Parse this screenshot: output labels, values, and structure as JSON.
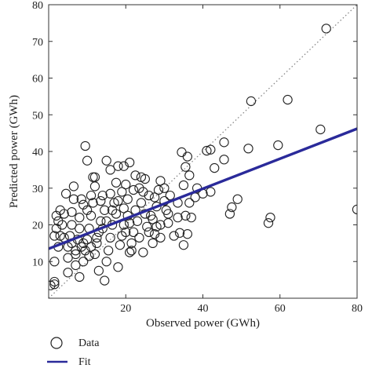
{
  "chart_data": {
    "type": "scatter",
    "xlabel": "Observed power (GWh)",
    "ylabel": "Predicted power (GWh)",
    "xlim": [
      0,
      80
    ],
    "ylim": [
      0,
      80
    ],
    "xticks": [
      20,
      40,
      60,
      80
    ],
    "yticks": [
      10,
      20,
      30,
      40,
      50,
      60,
      70,
      80
    ],
    "grid": false,
    "legend_position": "bottom-left",
    "identity_line": {
      "style": "dotted",
      "color": "#888888",
      "from": [
        0,
        0
      ],
      "to": [
        80,
        80
      ]
    },
    "fit_line": {
      "color": "#2a2a9a",
      "x": [
        0,
        80
      ],
      "y": [
        13.5,
        46.2
      ]
    },
    "legend": [
      {
        "label": "Data",
        "marker": "circle"
      },
      {
        "label": "Fit",
        "marker": "line"
      }
    ],
    "series": [
      {
        "name": "Data",
        "marker": "open-circle",
        "color": "#222222",
        "points": [
          [
            72,
            73.5
          ],
          [
            52.5,
            53.7
          ],
          [
            62,
            54.1
          ],
          [
            70.5,
            46
          ],
          [
            59.5,
            41.7
          ],
          [
            51.8,
            40.8
          ],
          [
            80,
            24.2
          ],
          [
            57.5,
            22
          ],
          [
            57,
            20.5
          ],
          [
            49,
            27
          ],
          [
            47.5,
            24.8
          ],
          [
            47,
            23
          ],
          [
            45.5,
            37.8
          ],
          [
            45.5,
            42.5
          ],
          [
            42,
            40.5
          ],
          [
            41,
            40.2
          ],
          [
            43,
            35.5
          ],
          [
            34.5,
            39.8
          ],
          [
            36,
            38.6
          ],
          [
            35.5,
            35.8
          ],
          [
            36.5,
            33.5
          ],
          [
            35,
            30.8
          ],
          [
            38,
            27.5
          ],
          [
            42,
            29
          ],
          [
            36,
            17.5
          ],
          [
            34,
            17.8
          ],
          [
            33.5,
            22
          ],
          [
            35,
            14.5
          ],
          [
            35.5,
            22.5
          ],
          [
            36.5,
            26
          ],
          [
            31.5,
            28
          ],
          [
            30,
            26.5
          ],
          [
            31,
            23
          ],
          [
            29,
            20
          ],
          [
            29,
            16.5
          ],
          [
            28,
            19.5
          ],
          [
            29,
            32
          ],
          [
            30,
            30
          ],
          [
            27.5,
            27.5
          ],
          [
            28,
            25
          ],
          [
            27,
            15
          ],
          [
            26.5,
            22.5
          ],
          [
            25.5,
            19.5
          ],
          [
            24,
            33
          ],
          [
            23.5,
            30
          ],
          [
            25,
            32.5
          ],
          [
            24,
            26
          ],
          [
            22.5,
            24
          ],
          [
            23,
            21
          ],
          [
            22,
            18
          ],
          [
            21.5,
            15
          ],
          [
            21,
            12.5
          ],
          [
            20.5,
            22.5
          ],
          [
            19.5,
            20
          ],
          [
            19,
            17
          ],
          [
            18.5,
            14.5
          ],
          [
            19,
            29
          ],
          [
            20,
            31
          ],
          [
            20.5,
            27
          ],
          [
            18,
            36
          ],
          [
            19.5,
            36
          ],
          [
            16,
            35
          ],
          [
            15,
            37.5
          ],
          [
            17,
            26
          ],
          [
            17.5,
            23
          ],
          [
            16.5,
            20
          ],
          [
            16,
            16.5
          ],
          [
            15.5,
            13
          ],
          [
            15,
            10
          ],
          [
            14,
            28
          ],
          [
            14.5,
            24
          ],
          [
            13.5,
            21
          ],
          [
            13,
            18
          ],
          [
            12.5,
            15
          ],
          [
            12,
            12
          ],
          [
            12,
            30.5
          ],
          [
            11.5,
            26
          ],
          [
            11,
            22.5
          ],
          [
            10.5,
            19
          ],
          [
            10,
            16
          ],
          [
            9.5,
            13
          ],
          [
            9,
            10
          ],
          [
            9,
            25.5
          ],
          [
            8,
            22
          ],
          [
            8,
            19
          ],
          [
            7.5,
            16
          ],
          [
            7,
            13
          ],
          [
            7,
            9
          ],
          [
            6.5,
            27
          ],
          [
            6,
            23.5
          ],
          [
            6,
            20
          ],
          [
            5.5,
            17
          ],
          [
            5,
            14
          ],
          [
            5,
            11
          ],
          [
            5,
            7
          ],
          [
            4,
            23
          ],
          [
            3.5,
            20
          ],
          [
            3,
            17
          ],
          [
            2.5,
            14
          ],
          [
            2,
            22.5
          ],
          [
            1.5,
            17
          ],
          [
            1.5,
            10
          ],
          [
            1.5,
            4.5
          ],
          [
            0.5,
            3.5
          ],
          [
            1.5,
            3.8
          ],
          [
            8,
            5.8
          ],
          [
            10.5,
            11.5
          ],
          [
            13,
            7.5
          ],
          [
            18,
            8.5
          ],
          [
            14.5,
            4.8
          ],
          [
            9.5,
            41.5
          ],
          [
            10,
            37.5
          ],
          [
            11.5,
            33
          ],
          [
            21.5,
            13
          ],
          [
            23.5,
            16.5
          ],
          [
            24.5,
            12.5
          ],
          [
            26,
            28
          ],
          [
            27.5,
            17.5
          ],
          [
            22,
            29.5
          ],
          [
            24.5,
            29
          ],
          [
            32.5,
            17
          ],
          [
            30.5,
            24
          ],
          [
            33.5,
            26
          ],
          [
            38.5,
            30
          ],
          [
            40,
            28.5
          ],
          [
            37,
            22
          ],
          [
            21,
            37
          ],
          [
            19.5,
            24.5
          ],
          [
            17.5,
            31.5
          ],
          [
            16,
            28.5
          ],
          [
            13.5,
            26.5
          ],
          [
            12,
            33
          ],
          [
            6.5,
            30.5
          ],
          [
            4.5,
            28.5
          ],
          [
            3,
            24
          ],
          [
            2,
            19
          ],
          [
            8.5,
            27
          ],
          [
            10,
            24
          ],
          [
            11,
            28
          ],
          [
            25,
            23
          ],
          [
            26,
            18
          ],
          [
            27,
            21.5
          ],
          [
            22.5,
            33.5
          ],
          [
            28.5,
            29.5
          ],
          [
            31,
            20.5
          ],
          [
            14,
            19
          ],
          [
            15,
            21
          ],
          [
            16.5,
            24
          ],
          [
            18,
            26.5
          ],
          [
            20,
            18
          ],
          [
            21,
            20.5
          ],
          [
            12.5,
            16.5
          ],
          [
            8.5,
            14
          ],
          [
            6,
            15
          ],
          [
            4,
            16.5
          ],
          [
            2.5,
            21
          ],
          [
            7,
            12
          ],
          [
            9,
            15
          ],
          [
            11,
            14
          ]
        ]
      }
    ]
  }
}
